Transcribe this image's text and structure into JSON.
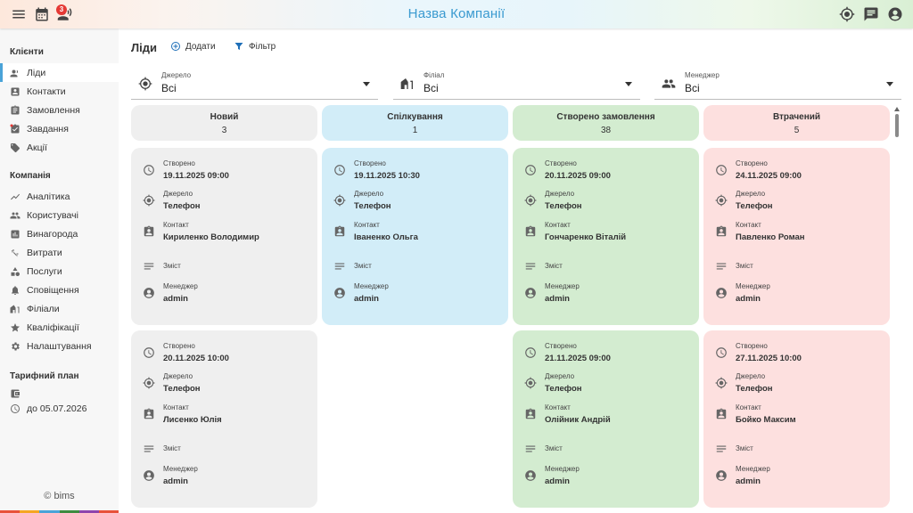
{
  "header": {
    "company_name": "Назва Компанії",
    "notification_count": "3"
  },
  "sidebar": {
    "clients_title": "Клієнти",
    "clients": [
      {
        "label": "Ліди",
        "icon": "leads-icon"
      },
      {
        "label": "Контакти",
        "icon": "contacts-icon"
      },
      {
        "label": "Замовлення",
        "icon": "orders-icon"
      },
      {
        "label": "Завдання",
        "icon": "tasks-icon"
      },
      {
        "label": "Акції",
        "icon": "tag-icon"
      }
    ],
    "company_title": "Компанія",
    "company": [
      {
        "label": "Аналітика",
        "icon": "analytics-icon"
      },
      {
        "label": "Користувачі",
        "icon": "users-icon"
      },
      {
        "label": "Винагорода",
        "icon": "reward-icon"
      },
      {
        "label": "Витрати",
        "icon": "expenses-icon"
      },
      {
        "label": "Послуги",
        "icon": "services-icon"
      },
      {
        "label": "Сповіщення",
        "icon": "bell-icon"
      },
      {
        "label": "Філіали",
        "icon": "branches-icon"
      },
      {
        "label": "Кваліфікації",
        "icon": "star-icon"
      },
      {
        "label": "Налаштування",
        "icon": "gear-icon"
      }
    ],
    "plan_title": "Тарифний план",
    "plan_until": "до 05.07.2026",
    "copyright": "© bims",
    "accent_colors": [
      "#e8523b",
      "#f5a623",
      "#4aa3d8",
      "#3d8b40",
      "#8e44ad",
      "#e8523b"
    ]
  },
  "main": {
    "title": "Ліди",
    "add_label": "Додати",
    "filter_label": "Фільтр",
    "filters": [
      {
        "label": "Джерело",
        "value": "Всі"
      },
      {
        "label": "Філіал",
        "value": "Всі"
      },
      {
        "label": "Менеджер",
        "value": "Всі"
      }
    ],
    "field_labels": {
      "created": "Створено",
      "source": "Джерело",
      "contact": "Контакт",
      "content": "Зміст",
      "manager": "Менеджер"
    },
    "columns": [
      {
        "name": "Новий",
        "count": "3",
        "color": "#efefef",
        "cards": [
          {
            "created": "19.11.2025 09:00",
            "source": "Телефон",
            "contact": "Кириленко Володимир",
            "manager": "admin"
          },
          {
            "created": "20.11.2025 10:00",
            "source": "Телефон",
            "contact": "Лисенко Юлія",
            "manager": "admin"
          }
        ]
      },
      {
        "name": "Спілкування",
        "count": "1",
        "color": "#d2edf8",
        "cards": [
          {
            "created": "19.11.2025 10:30",
            "source": "Телефон",
            "contact": "Іваненко Ольга",
            "manager": "admin"
          }
        ]
      },
      {
        "name": "Створено замовлення",
        "count": "38",
        "color": "#d3ecd0",
        "cards": [
          {
            "created": "20.11.2025 09:00",
            "source": "Телефон",
            "contact": "Гончаренко Віталій",
            "manager": "admin"
          },
          {
            "created": "21.11.2025 09:00",
            "source": "Телефон",
            "contact": "Олійник Андрій",
            "manager": "admin"
          }
        ]
      },
      {
        "name": "Втрачений",
        "count": "5",
        "color": "#fde0df",
        "cards": [
          {
            "created": "24.11.2025 09:00",
            "source": "Телефон",
            "contact": "Павленко Роман",
            "manager": "admin"
          },
          {
            "created": "27.11.2025 10:00",
            "source": "Телефон",
            "contact": "Бойко Максим",
            "manager": "admin"
          }
        ]
      }
    ]
  }
}
